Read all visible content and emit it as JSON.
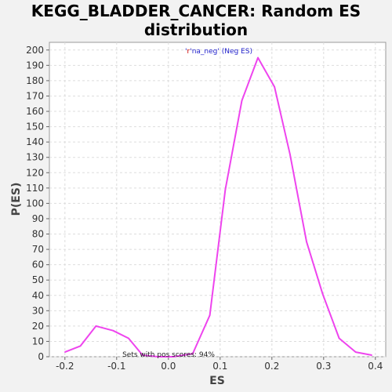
{
  "chart_data": {
    "type": "line",
    "title_line1": "KEGG_BLADDER_CANCER: Random ES",
    "title_line2": "distribution",
    "xlabel": "ES",
    "ylabel": "P(ES)",
    "xlim": [
      -0.23,
      0.42
    ],
    "ylim": [
      0,
      205
    ],
    "xticks": [
      -0.2,
      -0.1,
      0.0,
      0.1,
      0.2,
      0.3,
      0.4
    ],
    "xtick_labels": [
      "-0.2",
      "-0.1",
      "0.0",
      "0.1",
      "0.2",
      "0.3",
      "0.4"
    ],
    "yticks": [
      0,
      10,
      20,
      30,
      40,
      50,
      60,
      70,
      80,
      90,
      100,
      110,
      120,
      130,
      140,
      150,
      160,
      170,
      180,
      190,
      200
    ],
    "grid": true,
    "series": [
      {
        "name": "'r'na_neg' (Neg ES)",
        "color": "#ee44ee",
        "x": [
          -0.2,
          -0.17,
          -0.14,
          -0.107,
          -0.077,
          -0.05,
          -0.02,
          0.01,
          0.047,
          0.08,
          0.11,
          0.142,
          0.173,
          0.205,
          0.235,
          0.267,
          0.298,
          0.33,
          0.362,
          0.393
        ],
        "y": [
          3,
          7,
          20,
          17,
          12,
          1,
          0,
          0,
          2,
          27,
          109,
          167,
          195,
          176,
          132,
          75,
          41,
          12,
          3,
          1
        ]
      }
    ],
    "legend_prefix": "'",
    "legend_r": "r",
    "legend_rest": "'na_neg' (Neg ES)",
    "annotation": "Sets with pos scores: 94%"
  },
  "colors": {
    "background": "#f2f2f2",
    "plot_bg": "#ffffff",
    "line": "#ee44ee",
    "legend_text": "#2222cc",
    "legend_r": "#cc0000"
  }
}
